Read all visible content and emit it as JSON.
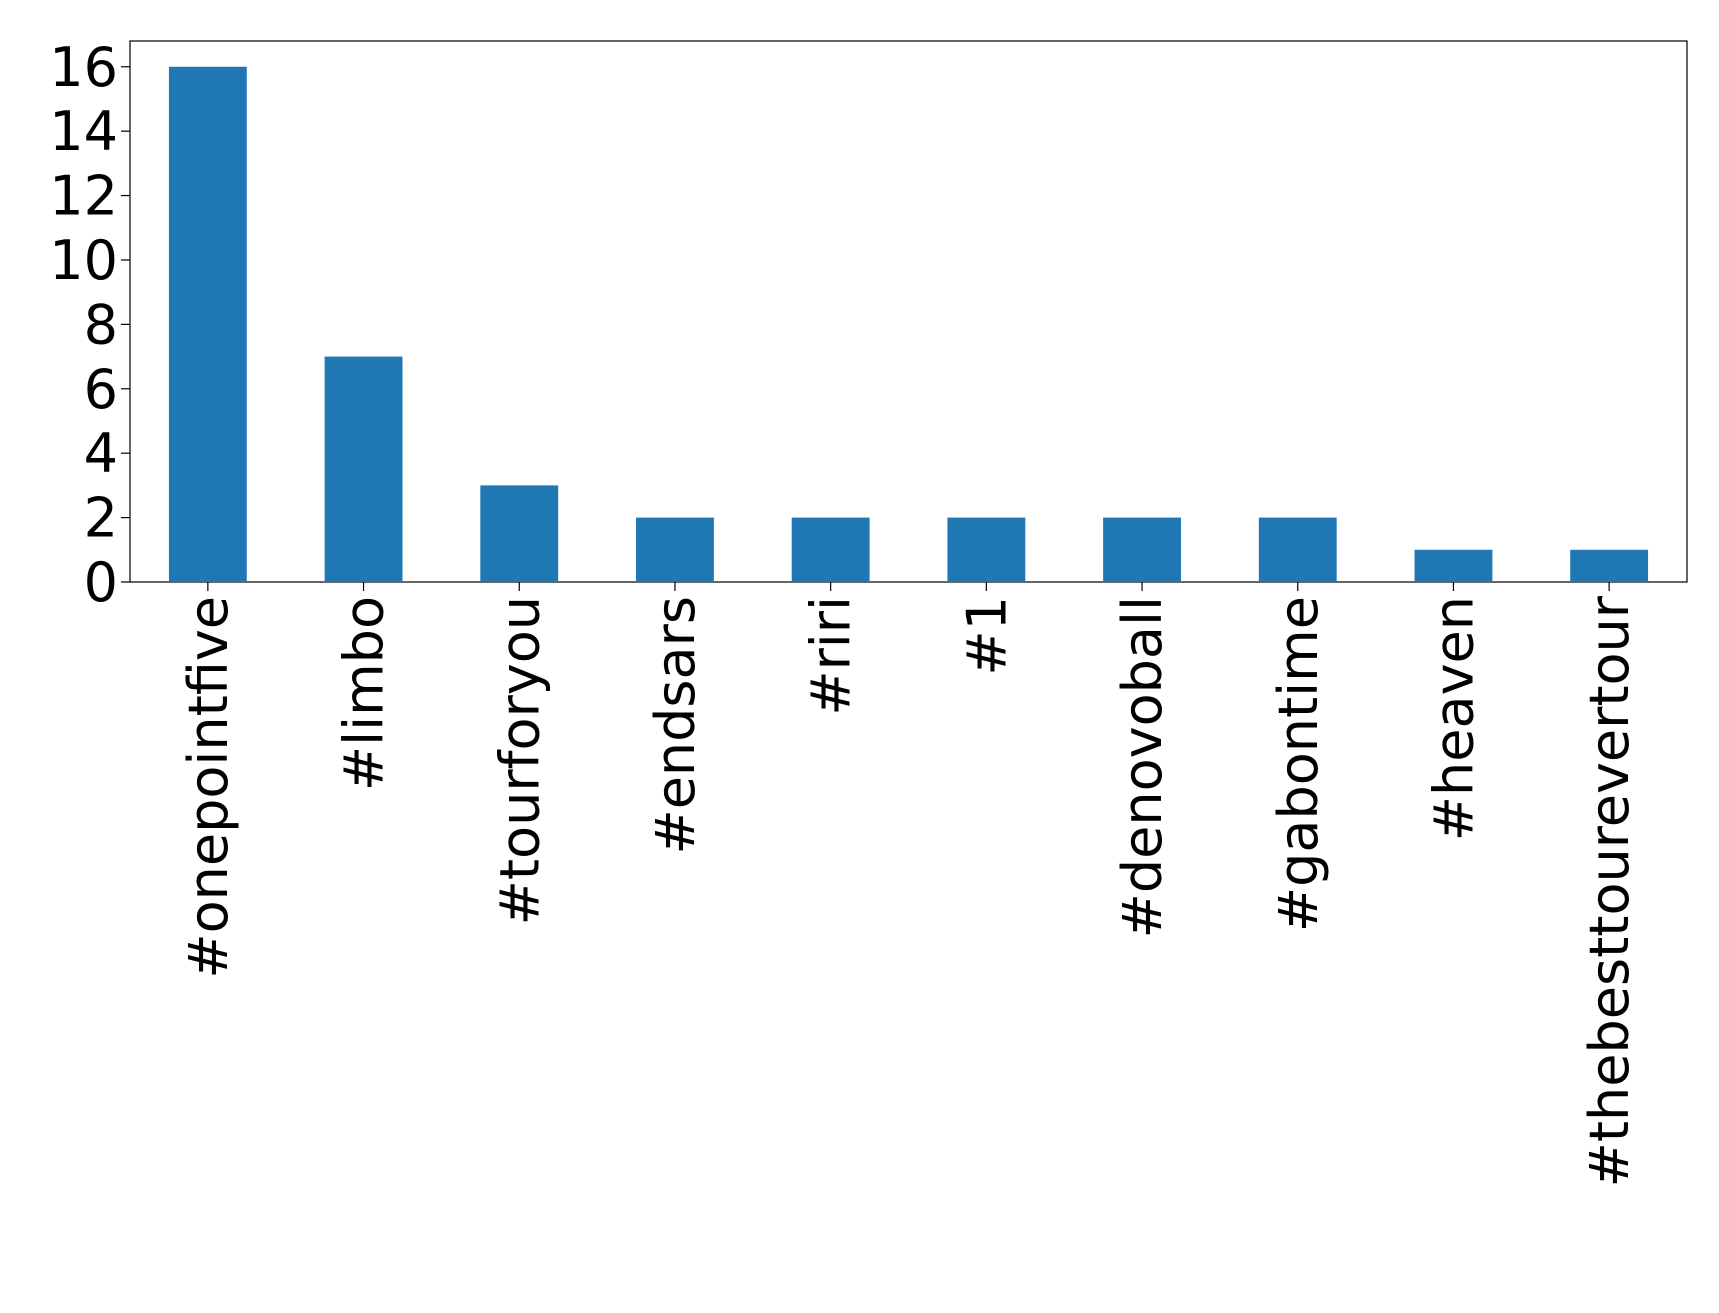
{
  "chart_data": {
    "type": "bar",
    "categories": [
      "#onepointfive",
      "#limbo",
      "#tourforyou",
      "#endsars",
      "#riri",
      "#1",
      "#denovoball",
      "#gabontime",
      "#heaven",
      "#thebesttourevertour"
    ],
    "values": [
      16,
      7,
      3,
      2,
      2,
      2,
      2,
      2,
      1,
      1
    ],
    "color": "#1f77b4",
    "ylim": [
      0,
      16.8
    ],
    "yticks": [
      0,
      2,
      4,
      6,
      8,
      10,
      12,
      14,
      16
    ],
    "grid": false
  }
}
